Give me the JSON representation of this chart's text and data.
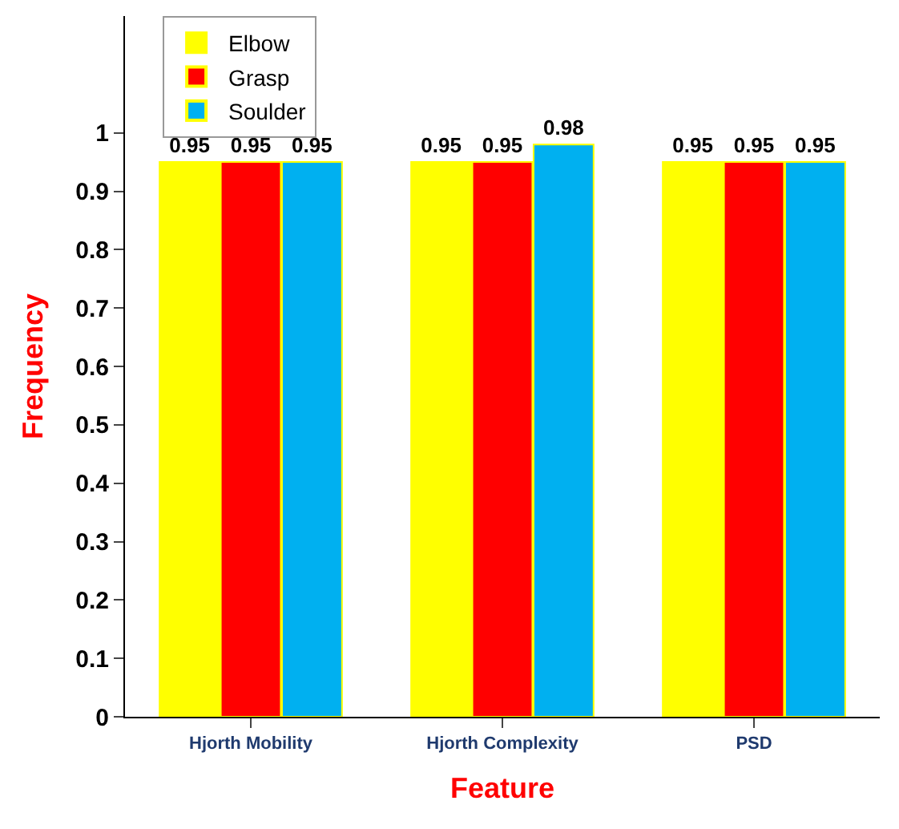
{
  "chart_data": {
    "type": "bar",
    "xlabel": "Feature",
    "ylabel": "Frequency",
    "categories": [
      "Hjorth Mobility",
      "Hjorth Complexity",
      "PSD"
    ],
    "series": [
      {
        "name": "Elbow",
        "color": "#ffff00",
        "values": [
          0.95,
          0.95,
          0.95
        ]
      },
      {
        "name": "Grasp",
        "color": "#ff0000",
        "values": [
          0.95,
          0.95,
          0.95
        ]
      },
      {
        "name": "Soulder",
        "color": "#00b0f0",
        "values": [
          0.95,
          0.98,
          0.95
        ]
      }
    ],
    "ylim": [
      0,
      1.2
    ],
    "yticks": [
      0,
      0.1,
      0.2,
      0.3,
      0.4,
      0.5,
      0.6,
      0.7,
      0.8,
      0.9,
      1
    ],
    "data_labels": true,
    "legend": "top left"
  }
}
